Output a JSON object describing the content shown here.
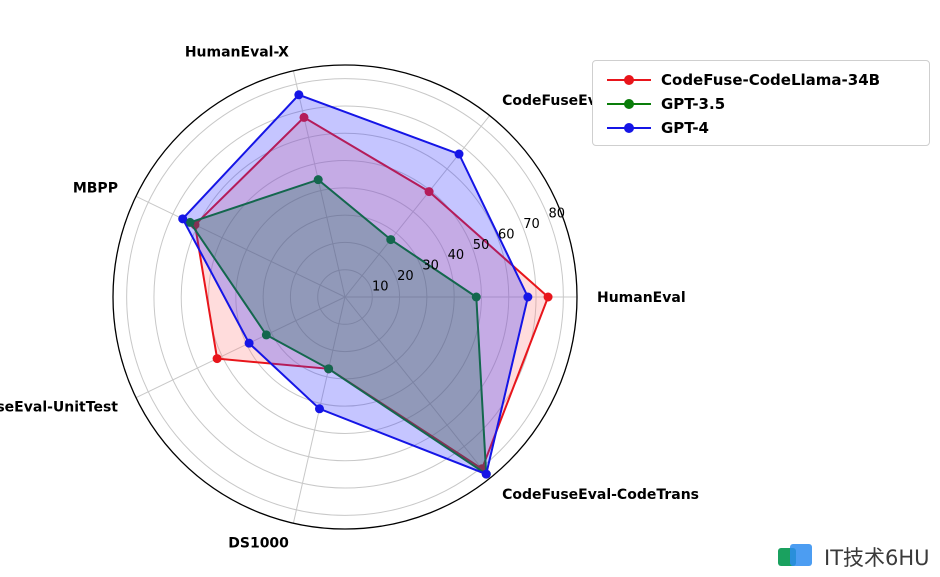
{
  "chart_data": {
    "type": "radar",
    "axes": [
      "HumanEval",
      "CodeFuseEval-CN",
      "HumanEval-X",
      "MBPP",
      "CodeFuseEval-UnitTest",
      "DS1000",
      "CodeFuseEval-CodeTrans"
    ],
    "radial_ticks": [
      10,
      20,
      30,
      40,
      50,
      60,
      70,
      80
    ],
    "rlim": [
      0,
      85
    ],
    "grid": true,
    "legend_position": "top-right",
    "series": [
      {
        "name": "CodeFuse-CodeLlama-34B",
        "color": "#e8151b",
        "fill": "#ff8080",
        "values": [
          74.4,
          49.4,
          67.5,
          61.0,
          52.0,
          27.0,
          80.5
        ]
      },
      {
        "name": "GPT-3.5",
        "color": "#0a7d0a",
        "fill": "#008000",
        "values": [
          48.1,
          26.9,
          44.1,
          63.0,
          32.0,
          27.0,
          83.0
        ]
      },
      {
        "name": "GPT-4",
        "color": "#1515e6",
        "fill": "#3030ff",
        "values": [
          67.0,
          67.0,
          76.0,
          66.0,
          39.0,
          42.0,
          83.0
        ]
      }
    ]
  },
  "watermark": {
    "text": "IT技术6HU"
  }
}
